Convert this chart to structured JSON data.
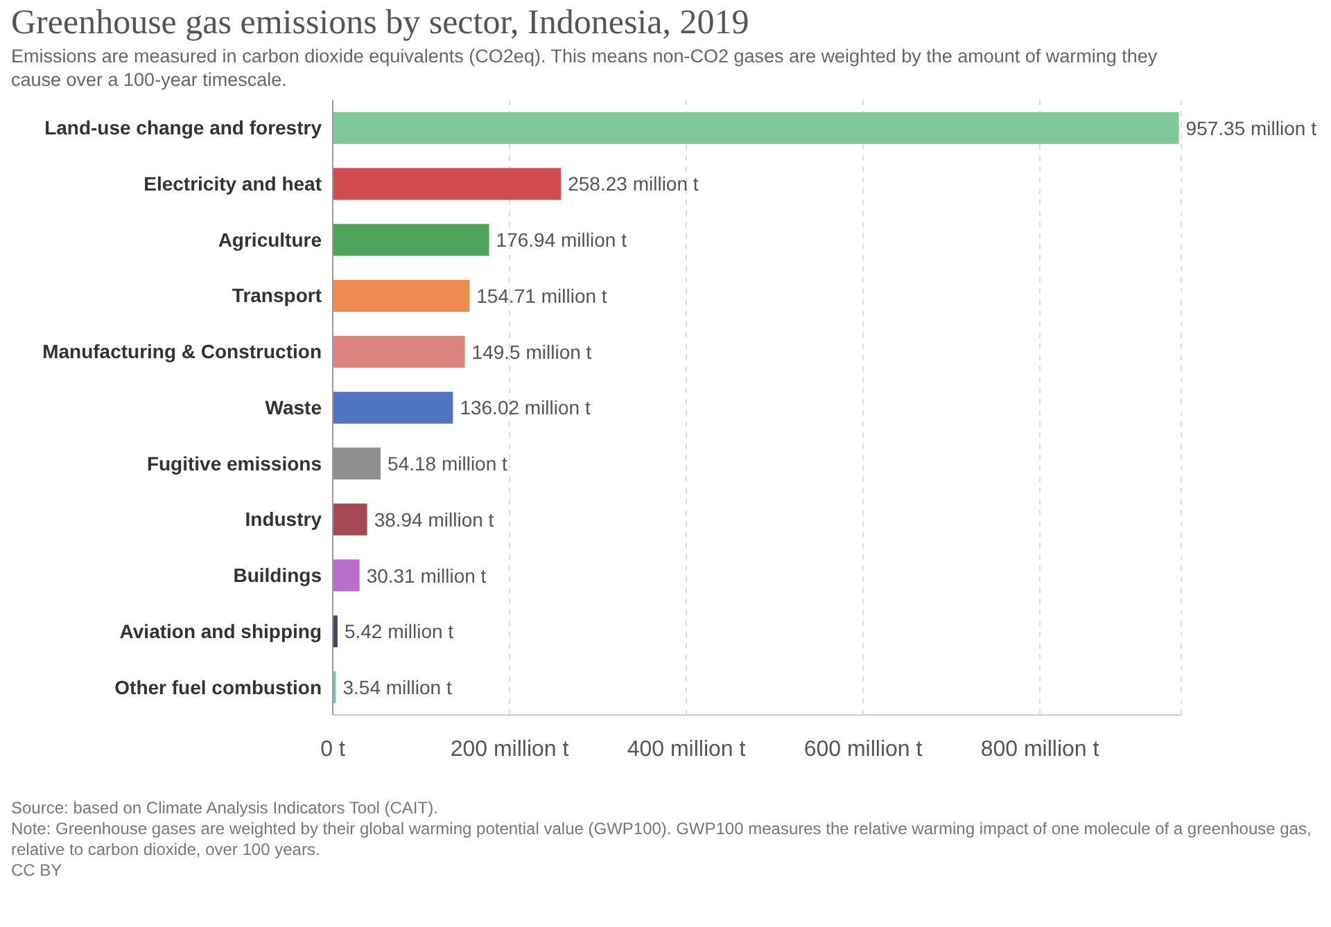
{
  "chart_data": {
    "type": "bar",
    "orientation": "horizontal",
    "title": "Greenhouse gas emissions by sector, Indonesia, 2019",
    "subtitle": "Emissions are measured in carbon dioxide equivalents (CO2eq). This means non-CO2 gases are weighted by the amount of warming they cause over a 100-year timescale.",
    "categories": [
      "Land-use change and forestry",
      "Electricity and heat",
      "Agriculture",
      "Transport",
      "Manufacturing & Construction",
      "Waste",
      "Fugitive emissions",
      "Industry",
      "Buildings",
      "Aviation and shipping",
      "Other fuel combustion"
    ],
    "values": [
      957.35,
      258.23,
      176.94,
      154.71,
      149.5,
      136.02,
      54.18,
      38.94,
      30.31,
      5.42,
      3.54
    ],
    "value_labels": [
      "957.35 million t",
      "258.23 million t",
      "176.94 million t",
      "154.71 million t",
      "149.5 million t",
      "136.02 million t",
      "54.18 million t",
      "38.94 million t",
      "30.31 million t",
      "5.42 million t",
      "3.54 million t"
    ],
    "colors": [
      "#7ec89a",
      "#d24b4f",
      "#4ea45a",
      "#f08a4f",
      "#dd837d",
      "#4f74c0",
      "#8f8f8f",
      "#a44956",
      "#b86fcc",
      "#3b4b6b",
      "#6ec8cb"
    ],
    "xlim": [
      0,
      960
    ],
    "xticks": [
      {
        "value": 0,
        "label": "0 t"
      },
      {
        "value": 200,
        "label": "200 million t"
      },
      {
        "value": 400,
        "label": "400 million t"
      },
      {
        "value": 600,
        "label": "600 million t"
      },
      {
        "value": 800,
        "label": "800 million t"
      }
    ],
    "grid": "x",
    "annotations": [
      "Source: based on Climate Analysis Indicators Tool (CAIT).",
      "Note: Greenhouse gases are weighted by their global warming potential value (GWP100). GWP100 measures the relative warming impact of one molecule of a greenhouse gas, relative to carbon dioxide, over 100 years.",
      "CC BY"
    ]
  }
}
